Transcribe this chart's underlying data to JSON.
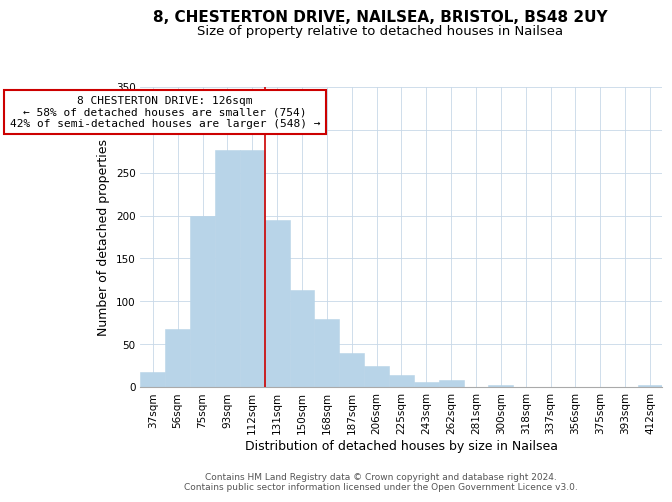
{
  "title": "8, CHESTERTON DRIVE, NAILSEA, BRISTOL, BS48 2UY",
  "subtitle": "Size of property relative to detached houses in Nailsea",
  "xlabel": "Distribution of detached houses by size in Nailsea",
  "ylabel": "Number of detached properties",
  "bar_labels": [
    "37sqm",
    "56sqm",
    "75sqm",
    "93sqm",
    "112sqm",
    "131sqm",
    "150sqm",
    "168sqm",
    "187sqm",
    "206sqm",
    "225sqm",
    "243sqm",
    "262sqm",
    "281sqm",
    "300sqm",
    "318sqm",
    "337sqm",
    "356sqm",
    "375sqm",
    "393sqm",
    "412sqm"
  ],
  "bar_values": [
    18,
    68,
    200,
    277,
    277,
    195,
    113,
    79,
    40,
    24,
    14,
    6,
    8,
    0,
    2,
    0,
    0,
    0,
    0,
    0,
    2
  ],
  "bar_color": "#b8d4e8",
  "bar_edge_color": "#b8d4e8",
  "marker_line_index": 5,
  "marker_line_color": "#cc0000",
  "ylim": [
    0,
    350
  ],
  "yticks": [
    0,
    50,
    100,
    150,
    200,
    250,
    300,
    350
  ],
  "annotation_title": "8 CHESTERTON DRIVE: 126sqm",
  "annotation_line1": "← 58% of detached houses are smaller (754)",
  "annotation_line2": "42% of semi-detached houses are larger (548) →",
  "annotation_box_color": "#ffffff",
  "annotation_box_edge": "#cc0000",
  "footer_line1": "Contains HM Land Registry data © Crown copyright and database right 2024.",
  "footer_line2": "Contains public sector information licensed under the Open Government Licence v3.0.",
  "background_color": "#ffffff",
  "grid_color": "#c8d8e8",
  "title_fontsize": 11,
  "subtitle_fontsize": 9.5,
  "axis_label_fontsize": 9,
  "tick_fontsize": 7.5,
  "annotation_fontsize": 8,
  "footer_fontsize": 6.5
}
